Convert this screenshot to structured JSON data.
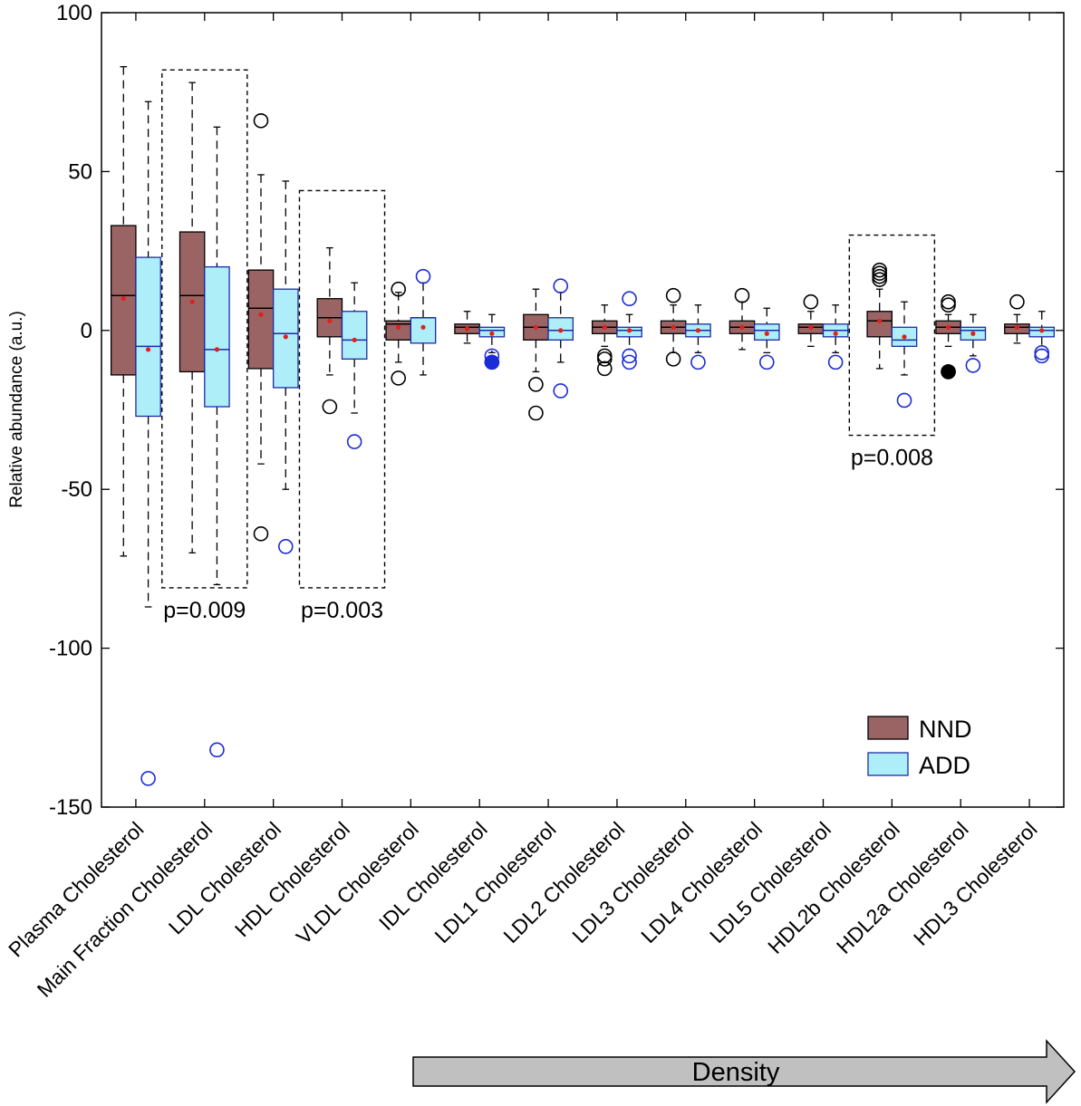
{
  "chart_data": {
    "type": "box",
    "ylabel": "Relative abundance (a.u.)",
    "ylim": [
      -150,
      100
    ],
    "yticks": [
      100,
      50,
      0,
      -50,
      -100,
      -150
    ],
    "categories": [
      "Plasma Cholesterol",
      "Main Fraction Cholesterol",
      "LDL Cholesterol",
      "HDL Cholesterol",
      "VLDL Cholesterol",
      "IDL Cholesterol",
      "LDL1 Cholesterol",
      "LDL2 Cholesterol",
      "LDL3 Cholesterol",
      "LDL4 Cholesterol",
      "LDL5 Cholesterol",
      "HDL2b Cholesterol",
      "HDL2a Cholesterol",
      "HDL3 Cholesterol"
    ],
    "legend": [
      {
        "name": "NND",
        "color": "#9b6464"
      },
      {
        "name": "ADD",
        "color": "#aeeef8"
      }
    ],
    "series": [
      {
        "name": "NND",
        "color": "#9b6464",
        "boxes": [
          {
            "whisker_low": -71,
            "q1": -14,
            "median": 11,
            "q3": 33,
            "whisker_high": 83,
            "mean": 10,
            "outliers": []
          },
          {
            "whisker_low": -70,
            "q1": -13,
            "median": 11,
            "q3": 31,
            "whisker_high": 78,
            "mean": 9,
            "outliers": []
          },
          {
            "whisker_low": -42,
            "q1": -12,
            "median": 7,
            "q3": 19,
            "whisker_high": 49,
            "mean": 5,
            "outliers": [
              66,
              -64
            ]
          },
          {
            "whisker_low": -14,
            "q1": -2,
            "median": 4,
            "q3": 10,
            "whisker_high": 26,
            "mean": 3,
            "outliers": [
              -24
            ]
          },
          {
            "whisker_low": -10,
            "q1": -3,
            "median": 2,
            "q3": 3,
            "whisker_high": 12,
            "mean": 1,
            "outliers": [
              13,
              -15
            ]
          },
          {
            "whisker_low": -4,
            "q1": -1,
            "median": 1,
            "q3": 2,
            "whisker_high": 6,
            "mean": 0.5,
            "outliers": []
          },
          {
            "whisker_low": -13,
            "q1": -3,
            "median": 1,
            "q3": 5,
            "whisker_high": 13,
            "mean": 1,
            "outliers": [
              -17,
              -26
            ]
          },
          {
            "whisker_low": -5,
            "q1": -1,
            "median": 1,
            "q3": 3,
            "whisker_high": 8,
            "mean": 1,
            "outliers": [
              -8,
              -9,
              -12
            ]
          },
          {
            "whisker_low": -7,
            "q1": -1,
            "median": 1,
            "q3": 3,
            "whisker_high": 8,
            "mean": 1,
            "outliers": [
              11,
              -9
            ]
          },
          {
            "whisker_low": -6,
            "q1": -1,
            "median": 1,
            "q3": 3,
            "whisker_high": 9,
            "mean": 1,
            "outliers": [
              11
            ]
          },
          {
            "whisker_low": -5,
            "q1": -1,
            "median": 1,
            "q3": 2,
            "whisker_high": 6,
            "mean": 1,
            "outliers": [
              9
            ]
          },
          {
            "whisker_low": -12,
            "q1": -2,
            "median": 3,
            "q3": 6,
            "whisker_high": 13,
            "mean": 3,
            "outliers": [
              16,
              17,
              18,
              19
            ]
          },
          {
            "whisker_low": -5,
            "q1": -1,
            "median": 1,
            "q3": 3,
            "whisker_high": 5,
            "mean": 1,
            "outliers": [
              9,
              8,
              -13
            ]
          },
          {
            "whisker_low": -4,
            "q1": -1,
            "median": 1,
            "q3": 2,
            "whisker_high": 5,
            "mean": 1,
            "outliers": [
              9
            ]
          }
        ]
      },
      {
        "name": "ADD",
        "color": "#aeeef8",
        "boxes": [
          {
            "whisker_low": -87,
            "q1": -27,
            "median": -5,
            "q3": 23,
            "whisker_high": 72,
            "mean": -6,
            "outliers": [
              -141
            ]
          },
          {
            "whisker_low": -80,
            "q1": -24,
            "median": -6,
            "q3": 20,
            "whisker_high": 64,
            "mean": -6,
            "outliers": [
              -132
            ]
          },
          {
            "whisker_low": -50,
            "q1": -18,
            "median": -1,
            "q3": 13,
            "whisker_high": 47,
            "mean": -2,
            "outliers": [
              -68
            ]
          },
          {
            "whisker_low": -26,
            "q1": -9,
            "median": -3,
            "q3": 6,
            "whisker_high": 15,
            "mean": -3,
            "outliers": [
              -35
            ]
          },
          {
            "whisker_low": -14,
            "q1": -4,
            "median": 4,
            "q3": 4,
            "whisker_high": 15,
            "mean": 1,
            "outliers": [
              17
            ]
          },
          {
            "whisker_low": -7,
            "q1": -2,
            "median": 0,
            "q3": 1,
            "whisker_high": 5,
            "mean": -1,
            "outliers": [
              -8,
              -10
            ]
          },
          {
            "whisker_low": -10,
            "q1": -3,
            "median": 0,
            "q3": 4,
            "whisker_high": 12,
            "mean": 0,
            "outliers": [
              14,
              -19
            ]
          },
          {
            "whisker_low": -6,
            "q1": -2,
            "median": 0,
            "q3": 1,
            "whisker_high": 5,
            "mean": 0,
            "outliers": [
              10,
              -8,
              -10
            ]
          },
          {
            "whisker_low": -7,
            "q1": -2,
            "median": 0,
            "q3": 2,
            "whisker_high": 8,
            "mean": 0,
            "outliers": [
              -10
            ]
          },
          {
            "whisker_low": -7,
            "q1": -3,
            "median": 0,
            "q3": 2,
            "whisker_high": 7,
            "mean": -1,
            "outliers": [
              -10
            ]
          },
          {
            "whisker_low": -7,
            "q1": -2,
            "median": 0,
            "q3": 2,
            "whisker_high": 8,
            "mean": -1,
            "outliers": [
              -10
            ]
          },
          {
            "whisker_low": -14,
            "q1": -5,
            "median": -3,
            "q3": 1,
            "whisker_high": 9,
            "mean": -2,
            "outliers": [
              -22
            ]
          },
          {
            "whisker_low": -8,
            "q1": -3,
            "median": 0,
            "q3": 1,
            "whisker_high": 5,
            "mean": -1,
            "outliers": [
              -11
            ]
          },
          {
            "whisker_low": -6,
            "q1": -2,
            "median": 0,
            "q3": 1,
            "whisker_high": 6,
            "mean": 0,
            "outliers": [
              -7,
              -8
            ]
          }
        ]
      }
    ],
    "annotations": [
      {
        "text": "p=0.009",
        "category_index": 1,
        "y_range": [
          -81,
          82
        ]
      },
      {
        "text": "p=0.003",
        "category_index": 3,
        "y_range": [
          -81,
          44
        ]
      },
      {
        "text": "p=0.008",
        "category_index": 11,
        "y_range": [
          -33,
          30
        ]
      }
    ],
    "density_arrow_label": "Density"
  }
}
